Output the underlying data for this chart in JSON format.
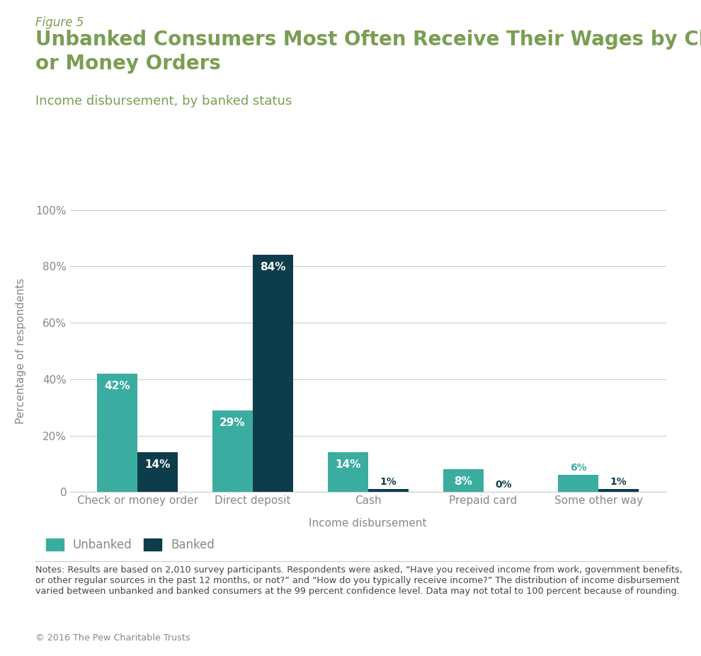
{
  "figure_label": "Figure 5",
  "title": "Unbanked Consumers Most Often Receive Their Wages by Checks\nor Money Orders",
  "subtitle": "Income disbursement, by banked status",
  "xlabel": "Income disbursement",
  "ylabel": "Percentage of respondents",
  "categories": [
    "Check or money order",
    "Direct deposit",
    "Cash",
    "Prepaid card",
    "Some other way"
  ],
  "unbanked_values": [
    42,
    29,
    14,
    8,
    6
  ],
  "banked_values": [
    14,
    84,
    1,
    0,
    1
  ],
  "unbanked_color": "#3aada0",
  "banked_color": "#0d3d4a",
  "ylim": [
    0,
    100
  ],
  "yticks": [
    0,
    20,
    40,
    60,
    80,
    100
  ],
  "ytick_labels": [
    "0",
    "20%",
    "40%",
    "60%",
    "80%",
    "100%"
  ],
  "bar_width": 0.35,
  "background_color": "#ffffff",
  "grid_color": "#cccccc",
  "title_color": "#7a9e52",
  "figure_label_color": "#7a9e52",
  "subtitle_color": "#7a9e52",
  "axis_label_color": "#888888",
  "tick_label_color": "#888888",
  "notes_text": "Notes: Results are based on 2,010 survey participants. Respondents were asked, “Have you received income from work, government benefits,\nor other regular sources in the past 12 months, or not?” and “How do you typically receive income?” The distribution of income disbursement\nvaried between unbanked and banked consumers at the 99 percent confidence level. Data may not total to 100 percent because of rounding.",
  "copyright_text": "© 2016 The Pew Charitable Trusts",
  "legend_labels": [
    "Unbanked",
    "Banked"
  ]
}
